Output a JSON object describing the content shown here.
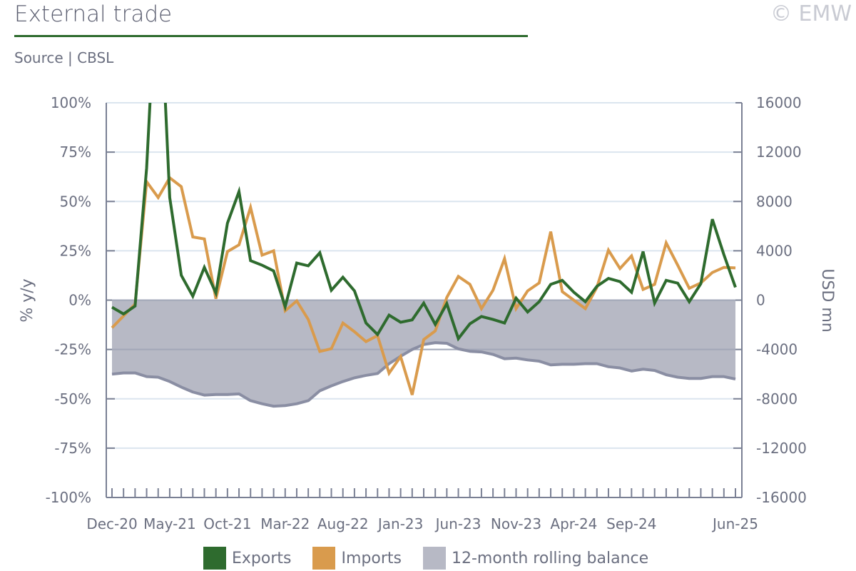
{
  "header": {
    "title": "External trade",
    "copyright": "© EMW",
    "source": "Source | CBSL"
  },
  "colors": {
    "exports": "#2e6b2e",
    "imports": "#d99b4d",
    "balance_fill": "#b7b9c5",
    "balance_line": "#8a8ea3",
    "grid": "#dbe5ef",
    "axis": "#7a8094"
  },
  "chart_data": {
    "type": "line",
    "title": "External trade",
    "ylabel": "% y/y",
    "y2label": "USD mn",
    "ylim": [
      -100,
      100
    ],
    "y2lim": [
      -16000,
      16000
    ],
    "yticks": [
      "100%",
      "75%",
      "50%",
      "25%",
      "0%",
      "-25%",
      "-50%",
      "-75%",
      "-100%"
    ],
    "y2ticks": [
      "16000",
      "12000",
      "8000",
      "4000",
      "0",
      "-4000",
      "-8000",
      "-12000",
      "-16000"
    ],
    "xtick_labels": [
      {
        "i": 0,
        "label": "Dec-20"
      },
      {
        "i": 5,
        "label": "May-21"
      },
      {
        "i": 10,
        "label": "Oct-21"
      },
      {
        "i": 15,
        "label": "Mar-22"
      },
      {
        "i": 20,
        "label": "Aug-22"
      },
      {
        "i": 25,
        "label": "Jan-23"
      },
      {
        "i": 30,
        "label": "Jun-23"
      },
      {
        "i": 35,
        "label": "Nov-23"
      },
      {
        "i": 40,
        "label": "Apr-24"
      },
      {
        "i": 45,
        "label": "Sep-24"
      },
      {
        "i": 54,
        "label": "Jun-25"
      }
    ],
    "n_months": 55,
    "legend_position": "bottom",
    "series": [
      {
        "name": "Exports",
        "axis": "left",
        "values": [
          -3.6,
          -7,
          -3,
          67,
          180,
          52,
          12.6,
          2,
          16.6,
          3.6,
          39,
          55,
          20,
          17.7,
          14.8,
          -3.3,
          18.8,
          17.4,
          24,
          5,
          11.6,
          4.7,
          -11.6,
          -17.4,
          -7.6,
          -11.2,
          -10,
          -1.5,
          -12.3,
          -1.8,
          -19.5,
          -12,
          -8.3,
          -9.8,
          -11.6,
          1,
          -6,
          -0.8,
          8,
          10,
          4,
          -0.8,
          7,
          11,
          9.4,
          4,
          24.6,
          -1.5,
          10,
          8.6,
          -0.8,
          8.3,
          41,
          23,
          6.5
        ]
      },
      {
        "name": "Imports",
        "axis": "left",
        "values": [
          -14,
          -8,
          -2,
          60,
          52,
          62,
          57.5,
          32,
          31,
          0.7,
          24.6,
          28,
          47,
          22.8,
          25,
          -5.4,
          -0.4,
          -9.8,
          -26,
          -24.6,
          -11.6,
          -16,
          -21,
          -18,
          -37,
          -28.6,
          -48,
          -20,
          -15.6,
          1.4,
          12,
          8,
          -4.3,
          5,
          21,
          -4.3,
          4.7,
          8.7,
          34.7,
          4.3,
          0,
          -4.3,
          6.5,
          25.3,
          16,
          22.4,
          5.4,
          8,
          29,
          17.7,
          6,
          8.7,
          14,
          16.6,
          16.3
        ]
      },
      {
        "name": "12-month rolling balance",
        "axis": "right",
        "type": "area",
        "values": [
          -6000,
          -5900,
          -5900,
          -6200,
          -6250,
          -6600,
          -7050,
          -7450,
          -7700,
          -7650,
          -7650,
          -7600,
          -8150,
          -8400,
          -8600,
          -8550,
          -8400,
          -8150,
          -7350,
          -6950,
          -6600,
          -6300,
          -6100,
          -5950,
          -5150,
          -4550,
          -4000,
          -3600,
          -3450,
          -3500,
          -3950,
          -4150,
          -4200,
          -4400,
          -4750,
          -4700,
          -4850,
          -4950,
          -5250,
          -5200,
          -5200,
          -5150,
          -5150,
          -5400,
          -5500,
          -5750,
          -5600,
          -5700,
          -6050,
          -6250,
          -6350,
          -6350,
          -6200,
          -6200,
          -6400
        ]
      }
    ]
  }
}
